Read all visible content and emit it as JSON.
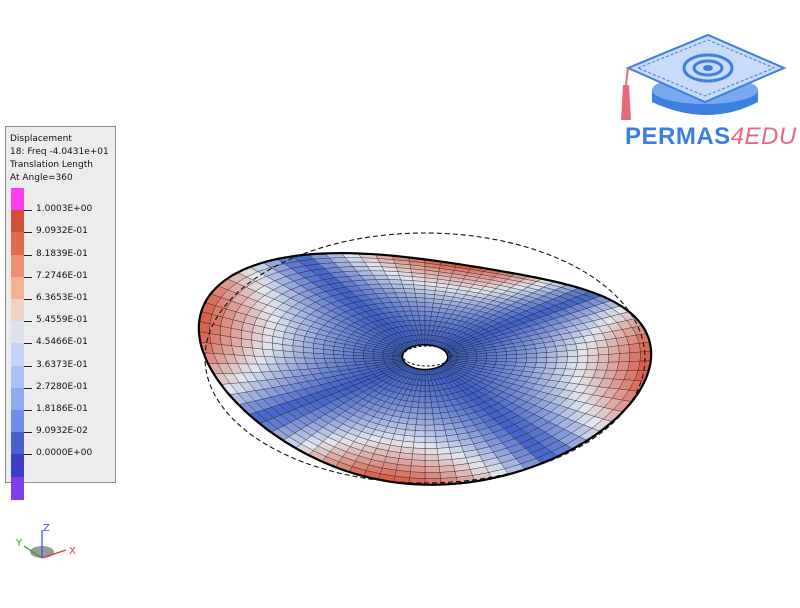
{
  "legend": {
    "header": [
      "Displacement",
      "18: Freq -4.0431e+01",
      "Translation Length",
      "At Angle=360"
    ],
    "colors": [
      "#ff3cf0",
      "#d0503a",
      "#e06a4f",
      "#ef8f73",
      "#f4b196",
      "#f0d2c4",
      "#dde3ee",
      "#c6d5f5",
      "#a9c1f4",
      "#8eaaf0",
      "#6e8de6",
      "#4863d0",
      "#3b3fc4",
      "#7f3fea"
    ],
    "values": [
      "1.0003E+00",
      "9.0932E-01",
      "8.1839E-01",
      "7.2746E-01",
      "6.3653E-01",
      "5.4559E-01",
      "4.5466E-01",
      "3.6373E-01",
      "2.7280E-01",
      "1.8186E-01",
      "9.0932E-02",
      "0.0000E+00"
    ]
  },
  "brand": {
    "part1": "PERMAS",
    "part2": "4EDU"
  },
  "triad": {
    "x": "X",
    "y": "Y",
    "z": "Z"
  },
  "colors": {
    "accent_blue": "#3b7fe0",
    "accent_pink": "#e8687c",
    "mesh_low": "#3b5fc8",
    "mesh_high": "#d9604a"
  }
}
